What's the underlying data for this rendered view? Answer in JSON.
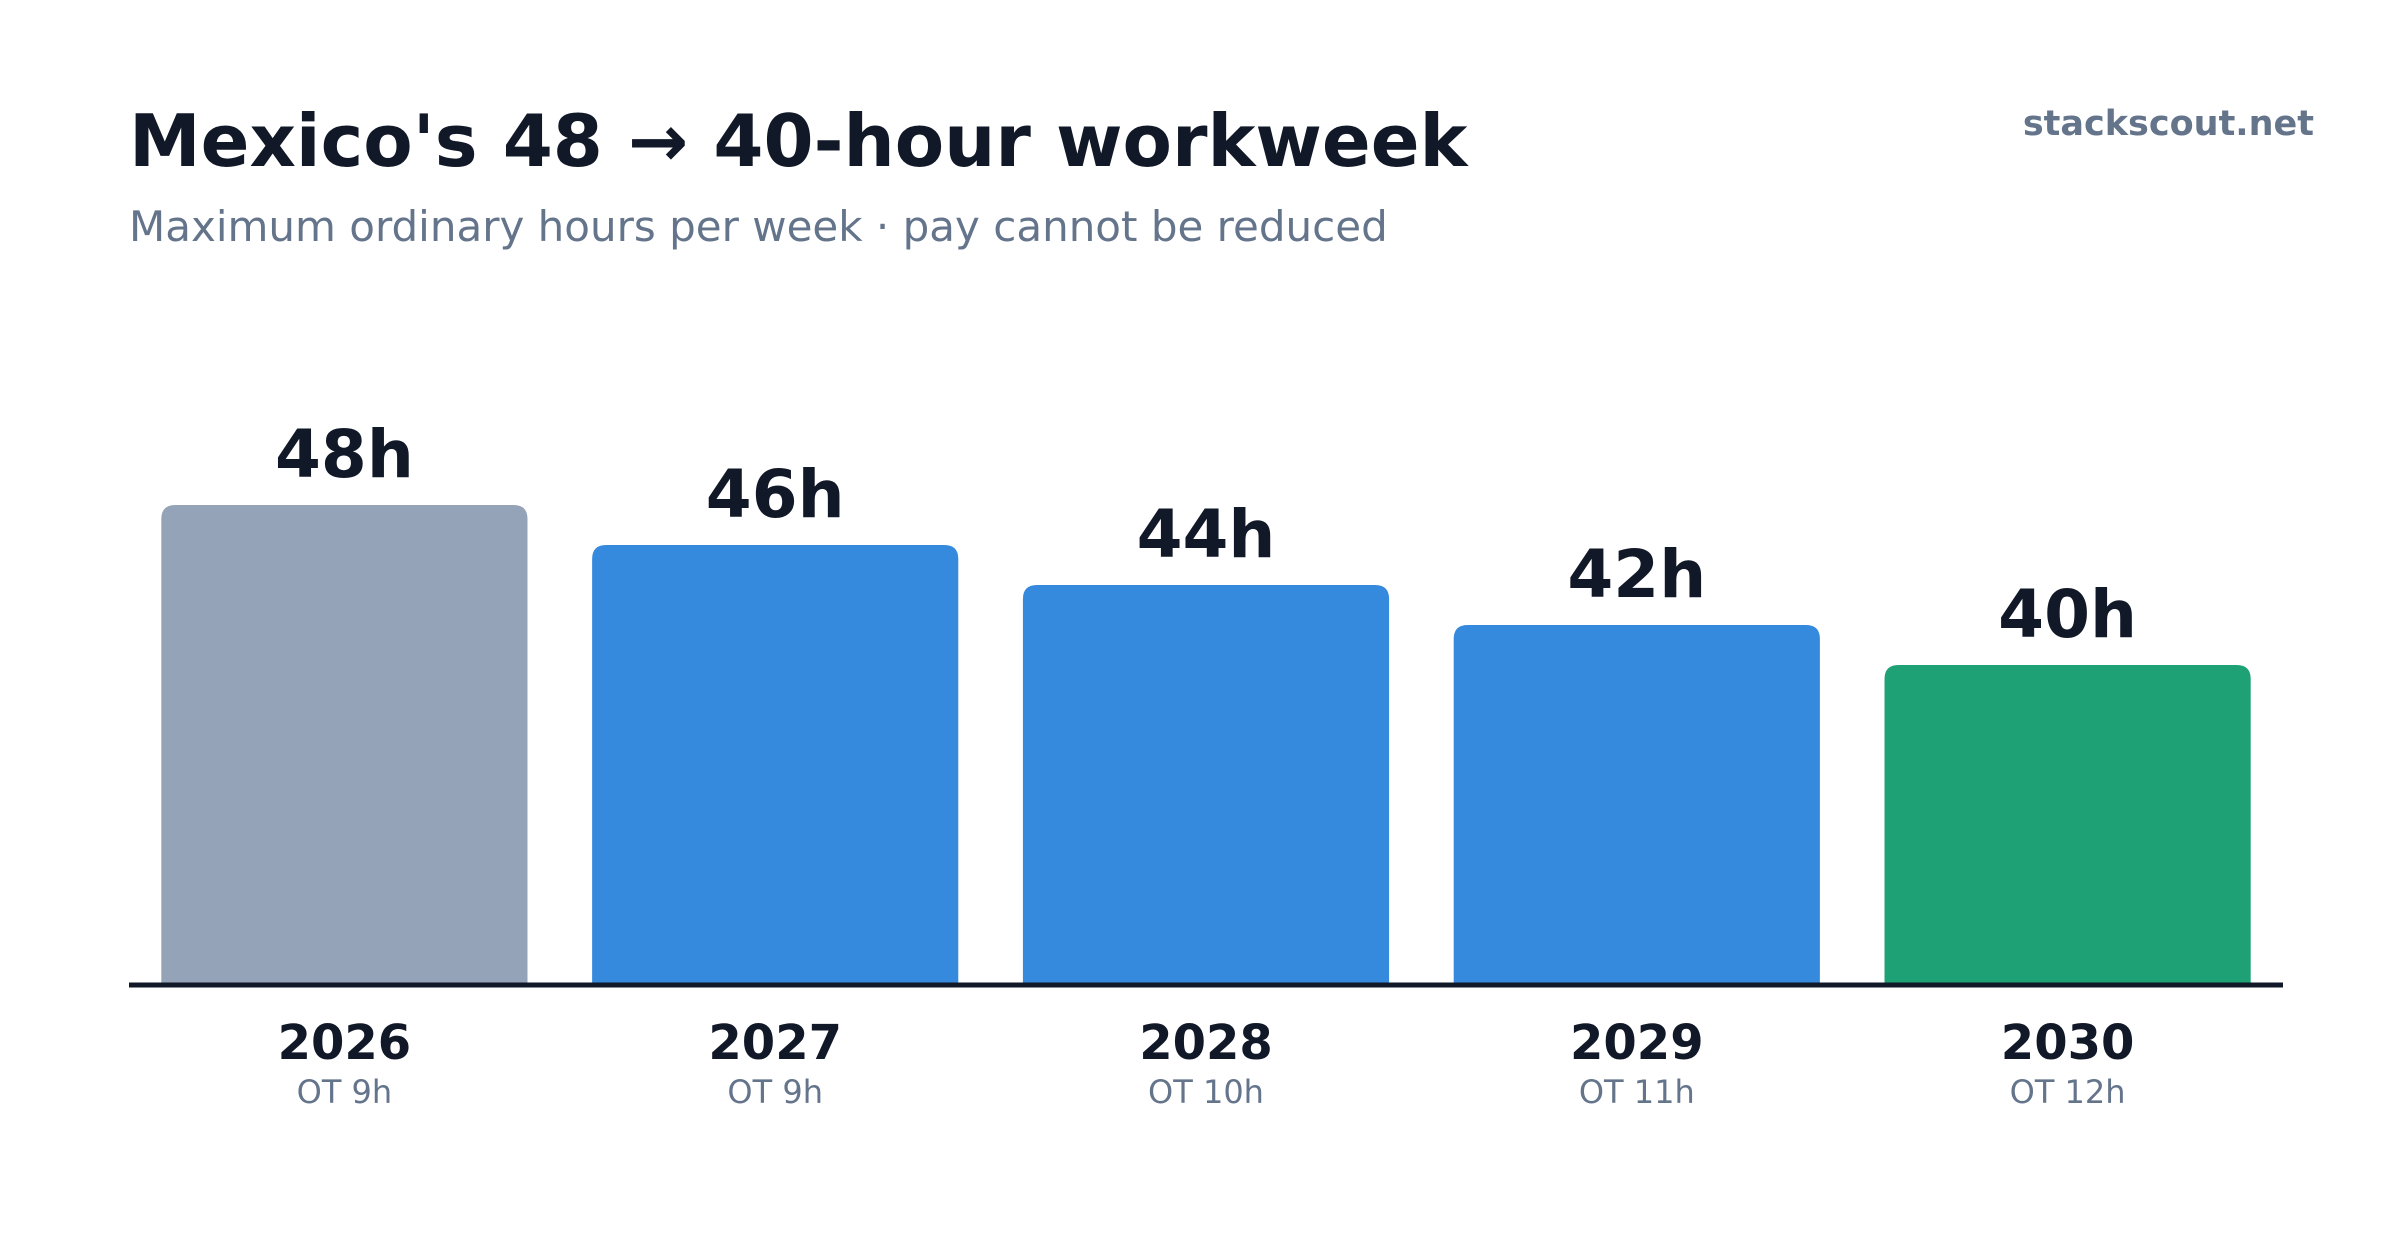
{
  "chart_data": {
    "type": "bar",
    "title": "Mexico's 48 → 40-hour workweek",
    "subtitle": "Maximum ordinary hours per week · pay cannot be reduced",
    "source": "stackscout.net",
    "categories": [
      "2026",
      "2027",
      "2028",
      "2029",
      "2030"
    ],
    "sublabels": [
      "OT 9h",
      "OT 9h",
      "OT 10h",
      "OT 11h",
      "OT 12h"
    ],
    "values": [
      48,
      46,
      44,
      42,
      40
    ],
    "value_labels": [
      "48h",
      "46h",
      "44h",
      "42h",
      "40h"
    ],
    "colors": [
      "#94a3b8",
      "#368ade",
      "#368ade",
      "#368ade",
      "#1ea174"
    ],
    "ylim": [
      24,
      52
    ]
  }
}
